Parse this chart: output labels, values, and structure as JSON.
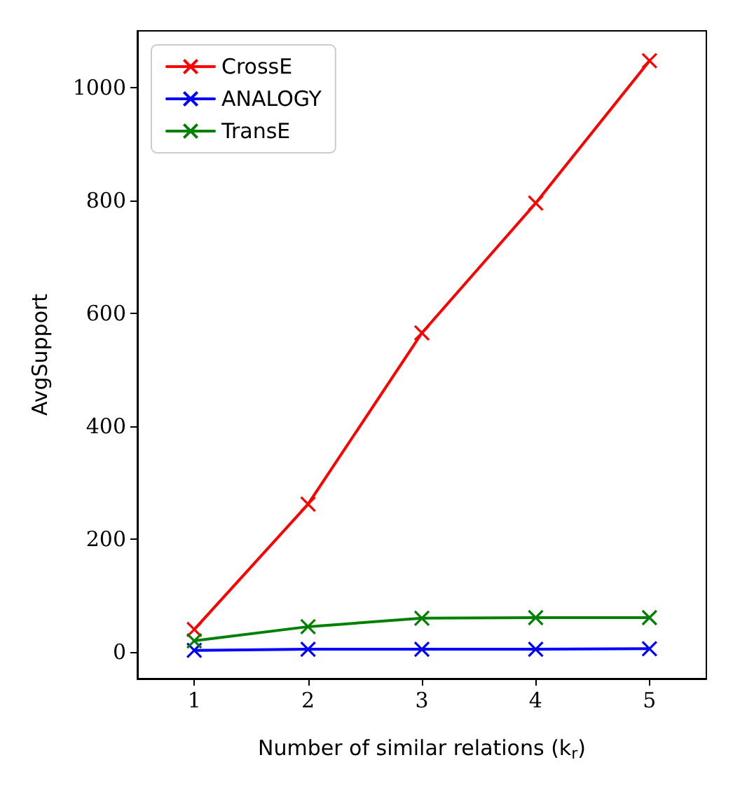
{
  "chart_data": {
    "type": "line",
    "xlabel": "Number of similar relations (k$_{r}$)",
    "ylabel": "AvgSupport",
    "x": [
      1,
      2,
      3,
      4,
      5
    ],
    "series": [
      {
        "name": "CrossE",
        "color": "#ff0000",
        "values": [
          40,
          262,
          565,
          795,
          1047
        ]
      },
      {
        "name": "ANALOGY",
        "color": "#0000ff",
        "values": [
          3,
          5,
          5,
          5,
          6
        ]
      },
      {
        "name": "TransE",
        "color": "#008000",
        "values": [
          20,
          45,
          60,
          61,
          61
        ]
      }
    ],
    "xlim": [
      0.5,
      5.5
    ],
    "xticks": [
      1,
      2,
      3,
      4,
      5
    ],
    "ylim": [
      -47,
      1100
    ],
    "yticks": [
      0,
      200,
      400,
      600,
      800,
      1000
    ],
    "grid": false,
    "legend": "top left",
    "marker": "cross",
    "line_style": "solid"
  }
}
